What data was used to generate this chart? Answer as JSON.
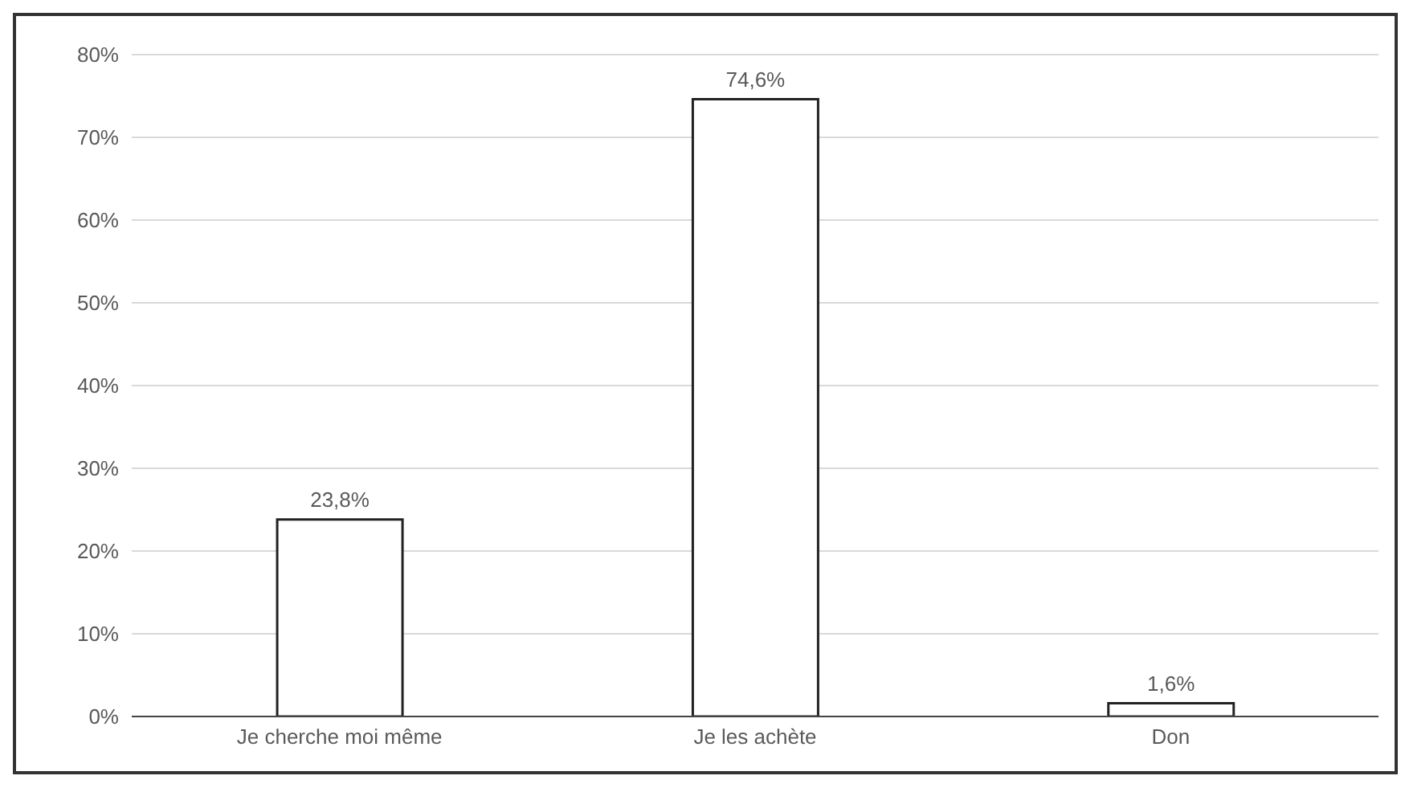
{
  "chart_data": {
    "type": "bar",
    "categories": [
      "Je cherche moi même",
      "Je les achète",
      "Don"
    ],
    "values": [
      23.8,
      74.6,
      1.6
    ],
    "value_labels": [
      "23,8%",
      "74,6%",
      "1,6%"
    ],
    "color": "#ffffff",
    "ylim": [
      0,
      80
    ],
    "yticks": [
      {
        "value": 0,
        "label": "0%"
      },
      {
        "value": 10,
        "label": "10%"
      },
      {
        "value": 20,
        "label": "20%"
      },
      {
        "value": 30,
        "label": "30%"
      },
      {
        "value": 40,
        "label": "40%"
      },
      {
        "value": 50,
        "label": "50%"
      },
      {
        "value": 60,
        "label": "60%"
      },
      {
        "value": 70,
        "label": "70%"
      },
      {
        "value": 80,
        "label": "80%"
      }
    ],
    "grid": "y"
  }
}
